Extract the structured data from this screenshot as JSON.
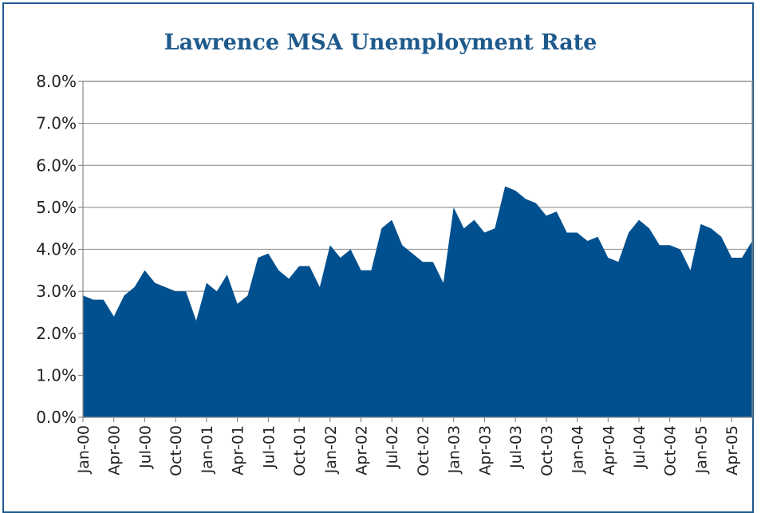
{
  "chart_data": {
    "type": "area",
    "title": "Lawrence MSA Unemployment Rate",
    "xlabel": "",
    "ylabel": "",
    "ylim": [
      0,
      8
    ],
    "grid": true,
    "legend": "none",
    "color": "#00508f",
    "y_ticks": [
      "0.0%",
      "1.0%",
      "2.0%",
      "3.0%",
      "4.0%",
      "5.0%",
      "6.0%",
      "7.0%",
      "8.0%"
    ],
    "x_tick_labels": [
      "Jan-00",
      "Apr-00",
      "Jul-00",
      "Oct-00",
      "Jan-01",
      "Apr-01",
      "Jul-01",
      "Oct-01",
      "Jan-02",
      "Apr-02",
      "Jul-02",
      "Oct-02",
      "Jan-03",
      "Apr-03",
      "Jul-03",
      "Oct-03",
      "Jan-04",
      "Apr-04",
      "Jul-04",
      "Oct-04",
      "Jan-05",
      "Apr-05"
    ],
    "categories": [
      "Jan-00",
      "Feb-00",
      "Mar-00",
      "Apr-00",
      "May-00",
      "Jun-00",
      "Jul-00",
      "Aug-00",
      "Sep-00",
      "Oct-00",
      "Nov-00",
      "Dec-00",
      "Jan-01",
      "Feb-01",
      "Mar-01",
      "Apr-01",
      "May-01",
      "Jun-01",
      "Jul-01",
      "Aug-01",
      "Sep-01",
      "Oct-01",
      "Nov-01",
      "Dec-01",
      "Jan-02",
      "Feb-02",
      "Mar-02",
      "Apr-02",
      "May-02",
      "Jun-02",
      "Jul-02",
      "Aug-02",
      "Sep-02",
      "Oct-02",
      "Nov-02",
      "Dec-02",
      "Jan-03",
      "Feb-03",
      "Mar-03",
      "Apr-03",
      "May-03",
      "Jun-03",
      "Jul-03",
      "Aug-03",
      "Sep-03",
      "Oct-03",
      "Nov-03",
      "Dec-03",
      "Jan-04",
      "Feb-04",
      "Mar-04",
      "Apr-04",
      "May-04",
      "Jun-04",
      "Jul-04",
      "Aug-04",
      "Sep-04",
      "Oct-04",
      "Nov-04",
      "Dec-04",
      "Jan-05",
      "Feb-05",
      "Mar-05",
      "Apr-05",
      "May-05",
      "Jun-05"
    ],
    "values": [
      2.9,
      2.8,
      2.8,
      2.4,
      2.9,
      3.1,
      3.5,
      3.2,
      3.1,
      3.0,
      3.0,
      2.3,
      3.2,
      3.0,
      3.4,
      2.7,
      2.9,
      3.8,
      3.9,
      3.5,
      3.3,
      3.6,
      3.6,
      3.1,
      4.1,
      3.8,
      4.0,
      3.5,
      3.5,
      4.5,
      4.7,
      4.1,
      3.9,
      3.7,
      3.7,
      3.2,
      5.0,
      4.5,
      4.7,
      4.4,
      4.5,
      5.5,
      5.4,
      5.2,
      5.1,
      4.8,
      4.9,
      4.4,
      4.4,
      4.2,
      4.3,
      3.8,
      3.7,
      4.4,
      4.7,
      4.5,
      4.1,
      4.1,
      4.0,
      3.5,
      4.6,
      4.5,
      4.3,
      3.8,
      3.8,
      4.2
    ]
  }
}
